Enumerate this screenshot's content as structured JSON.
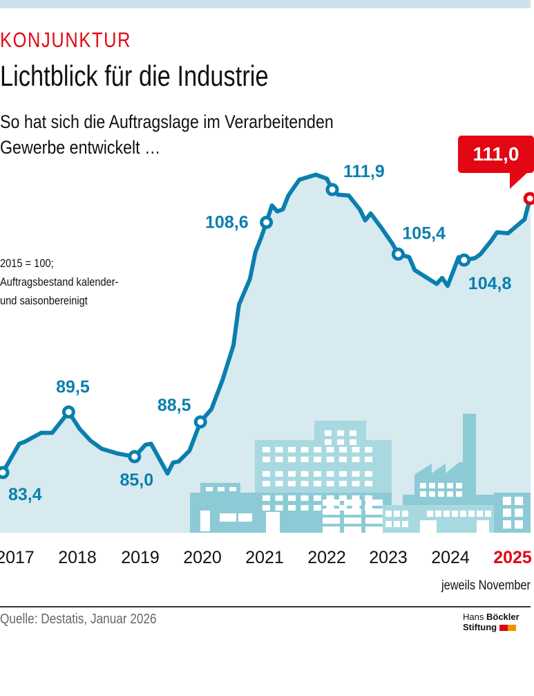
{
  "header": {
    "kicker": "KONJUNKTUR",
    "title": "Lichtblick für die Industrie",
    "subtitle_line1": "So hat sich die Auftragslage im Verarbeitenden",
    "subtitle_line2": "Gewerbe entwickelt …"
  },
  "note": {
    "line1": "2015 = 100;",
    "line2": "Auftragsbestand kalender-",
    "line3": "und saisonbereinigt"
  },
  "chart_data": {
    "type": "area",
    "title": "Lichtblick für die Industrie",
    "xlabel": "jeweils November",
    "ylabel": "2015 = 100",
    "x_tick_labels": [
      "2017",
      "2018",
      "2019",
      "2020",
      "2021",
      "2022",
      "2023",
      "2024",
      "2025"
    ],
    "highlight_tick": "2025",
    "ylim": [
      80,
      116
    ],
    "grid": false,
    "x": [
      "2017-11",
      "2018-02",
      "2018-03",
      "2018-05",
      "2018-06",
      "2018-08",
      "2018-11",
      "2019-01",
      "2019-03",
      "2019-05",
      "2019-08",
      "2019-11",
      "2020-01",
      "2020-02",
      "2020-05",
      "2020-06",
      "2020-07",
      "2020-09",
      "2020-11",
      "2021-01",
      "2021-03",
      "2021-05",
      "2021-06",
      "2021-08",
      "2021-09",
      "2021-10",
      "2021-11",
      "2021-12",
      "2022-01",
      "2022-02",
      "2022-03",
      "2022-05",
      "2022-08",
      "2022-10",
      "2022-11",
      "2022-12",
      "2023-02",
      "2023-04",
      "2023-05",
      "2023-06",
      "2023-08",
      "2023-10",
      "2023-11",
      "2024-01",
      "2024-02",
      "2024-04",
      "2024-06",
      "2024-07",
      "2024-08",
      "2024-10",
      "2024-11",
      "2025-01",
      "2025-02",
      "2025-04",
      "2025-05",
      "2025-07",
      "2025-10",
      "2025-11"
    ],
    "y": [
      83.4,
      86.3,
      86.5,
      87.1,
      87.4,
      87.4,
      89.5,
      87.8,
      86.6,
      85.8,
      85.3,
      85.0,
      86.2,
      86.3,
      83.3,
      84.4,
      84.5,
      85.6,
      88.5,
      89.8,
      92.7,
      96.2,
      100.3,
      102.9,
      105.6,
      107.0,
      108.6,
      110.3,
      109.7,
      109.9,
      111.3,
      112.9,
      113.4,
      113.0,
      111.9,
      111.4,
      111.3,
      109.9,
      108.8,
      109.5,
      108.0,
      106.4,
      105.4,
      105.1,
      103.8,
      103.1,
      102.4,
      103.0,
      102.2,
      105.1,
      104.8,
      105.0,
      105.4,
      106.8,
      107.6,
      107.5,
      108.9,
      111.0
    ],
    "labels": [
      {
        "x": "2017-11",
        "value": 83.4,
        "text": "83,4"
      },
      {
        "x": "2018-11",
        "value": 89.5,
        "text": "89,5"
      },
      {
        "x": "2019-11",
        "value": 85.0,
        "text": "85,0"
      },
      {
        "x": "2020-11",
        "value": 88.5,
        "text": "88,5"
      },
      {
        "x": "2021-11",
        "value": 108.6,
        "text": "108,6"
      },
      {
        "x": "2022-11",
        "value": 111.9,
        "text": "111,9"
      },
      {
        "x": "2023-11",
        "value": 105.4,
        "text": "105,4"
      },
      {
        "x": "2024-11",
        "value": 104.8,
        "text": "104,8"
      },
      {
        "x": "2025-11",
        "value": 111.0,
        "text": "111,0"
      }
    ],
    "colors": {
      "line": "#0a7fae",
      "area": "#d6eaf0",
      "highlight": "#e30613",
      "buildings": "#8ccbd6"
    }
  },
  "footer": {
    "source": "Quelle: Destatis, Januar 2026",
    "logo_line1_a": "Hans",
    "logo_line1_b": "Böckler",
    "logo_line2": "Stiftung"
  }
}
